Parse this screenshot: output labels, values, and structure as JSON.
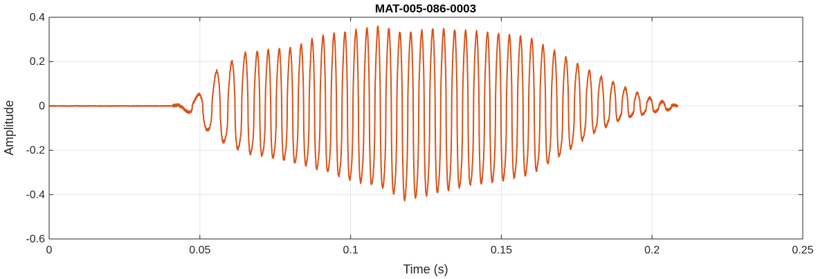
{
  "chart_data": {
    "type": "line",
    "title": "MAT-005-086-0003",
    "xlabel": "Time (s)",
    "ylabel": "Amplitude",
    "xlim": [
      0,
      0.25
    ],
    "ylim": [
      -0.6,
      0.4
    ],
    "xticks": [
      0,
      0.05,
      0.1,
      0.15,
      0.2,
      0.25
    ],
    "xtick_labels": [
      "0",
      "0.05",
      "0.1",
      "0.15",
      "0.2",
      "0.25"
    ],
    "yticks": [
      -0.6,
      -0.4,
      -0.2,
      0,
      0.2,
      0.4
    ],
    "ytick_labels": [
      "-0.6",
      "-0.4",
      "-0.2",
      "0",
      "0.2",
      "0.4"
    ],
    "grid": true,
    "series": [
      {
        "color": "#d95319",
        "signal_start": 0.0,
        "onset": 0.041,
        "signal_end": 0.2085,
        "envelope_peaks": [
          {
            "t": 0.044,
            "max": 0.01,
            "min": -0.005
          },
          {
            "t": 0.05,
            "max": 0.05,
            "min": -0.08
          },
          {
            "t": 0.055,
            "max": 0.14,
            "min": -0.15
          },
          {
            "t": 0.065,
            "max": 0.22,
            "min": -0.22
          },
          {
            "t": 0.08,
            "max": 0.24,
            "min": -0.26
          },
          {
            "t": 0.09,
            "max": 0.29,
            "min": -0.3
          },
          {
            "t": 0.1,
            "max": 0.31,
            "min": -0.35
          },
          {
            "t": 0.11,
            "max": 0.33,
            "min": -0.38
          },
          {
            "t": 0.118,
            "max": 0.3,
            "min": -0.44
          },
          {
            "t": 0.128,
            "max": 0.32,
            "min": -0.41
          },
          {
            "t": 0.14,
            "max": 0.31,
            "min": -0.37
          },
          {
            "t": 0.15,
            "max": 0.3,
            "min": -0.35
          },
          {
            "t": 0.16,
            "max": 0.28,
            "min": -0.32
          },
          {
            "t": 0.17,
            "max": 0.21,
            "min": -0.23
          },
          {
            "t": 0.18,
            "max": 0.14,
            "min": -0.13
          },
          {
            "t": 0.19,
            "max": 0.08,
            "min": -0.06
          },
          {
            "t": 0.2,
            "max": 0.03,
            "min": -0.03
          },
          {
            "t": 0.2085,
            "max": 0.0,
            "min": -0.01
          }
        ],
        "min_value": -0.44,
        "max_value": 0.33
      }
    ]
  }
}
